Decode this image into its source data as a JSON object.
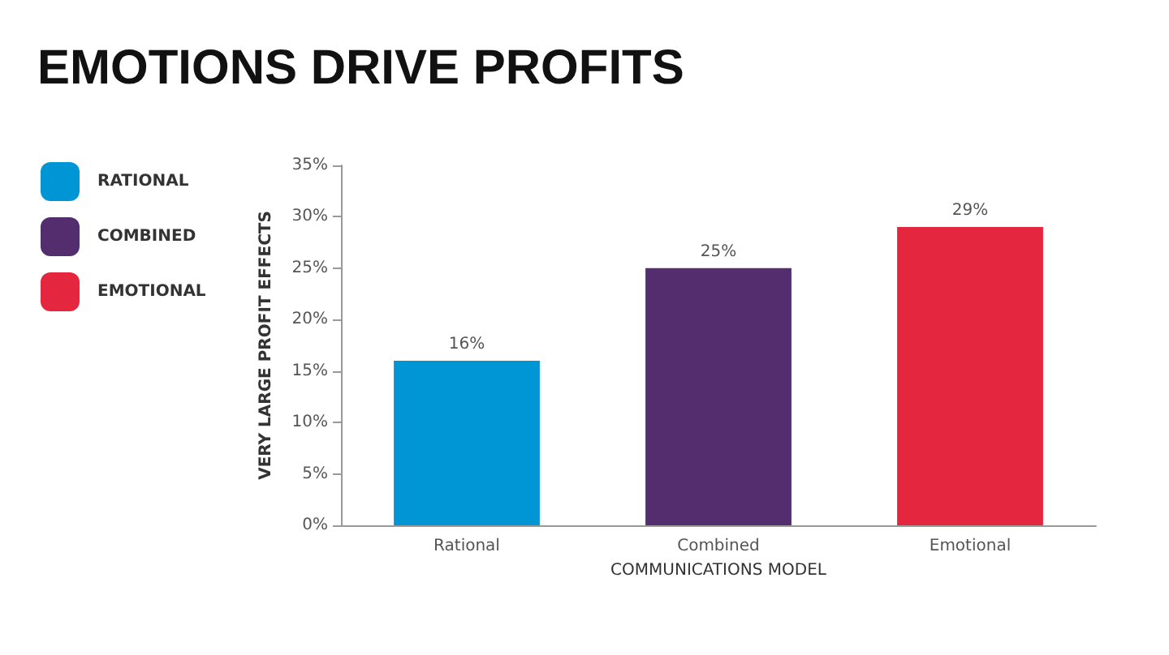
{
  "chart_data": {
    "type": "bar",
    "title": "EMOTIONS DRIVE PROFITS",
    "categories": [
      "Rational",
      "Combined",
      "Emotional"
    ],
    "series": [
      {
        "name": "RATIONAL",
        "color": "#0096d6",
        "values": [
          16,
          null,
          null
        ],
        "value_labels": [
          "16%",
          null,
          null
        ]
      },
      {
        "name": "COMBINED",
        "color": "#532d6d",
        "values": [
          null,
          25,
          null
        ],
        "value_labels": [
          null,
          "25%",
          null
        ]
      },
      {
        "name": "EMOTIONAL",
        "color": "#e4273f",
        "values": [
          null,
          null,
          29
        ],
        "value_labels": [
          null,
          null,
          "29%"
        ]
      }
    ],
    "stacked": true,
    "xlabel": "COMMUNICATIONS MODEL",
    "ylabel": "VERY LARGE PROFIT EFFECTS",
    "ylim": [
      0,
      35
    ],
    "yticks": [
      {
        "value": 0,
        "label": "0%"
      },
      {
        "value": 5,
        "label": "5%"
      },
      {
        "value": 10,
        "label": "10%"
      },
      {
        "value": 15,
        "label": "15%"
      },
      {
        "value": 20,
        "label": "20%"
      },
      {
        "value": 25,
        "label": "25%"
      },
      {
        "value": 30,
        "label": "30%"
      },
      {
        "value": 35,
        "label": "35%"
      }
    ],
    "grid": false,
    "legend": "left"
  }
}
